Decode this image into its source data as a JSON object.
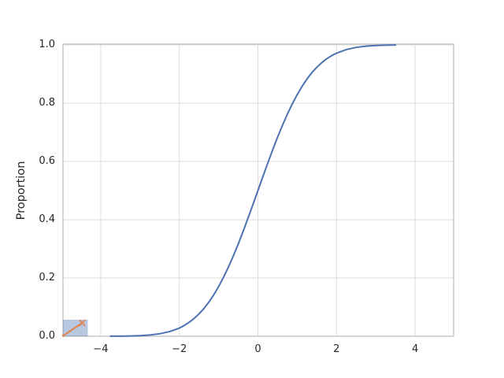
{
  "chart_data": {
    "type": "line",
    "subtype": "ecdf",
    "title": "",
    "xlabel": "",
    "ylabel": "Proportion",
    "xlim": [
      -4.96,
      4.98
    ],
    "ylim": [
      0,
      1
    ],
    "grid": true,
    "legend": "none",
    "xticks": [
      -4,
      -2,
      0,
      2,
      4
    ],
    "xtick_labels": [
      "−4",
      "−2",
      "0",
      "2",
      "4"
    ],
    "yticks": [
      0.0,
      0.2,
      0.4,
      0.6,
      0.8,
      1.0
    ],
    "ytick_labels": [
      "0.0",
      "0.2",
      "0.4",
      "0.6",
      "0.8",
      "1.0"
    ],
    "series": [
      {
        "name": "ecdf-curve",
        "color": "#4c72b0",
        "x": [
          -3.75,
          -3.5,
          -3.25,
          -3.0,
          -2.75,
          -2.5,
          -2.25,
          -2.0,
          -1.875,
          -1.75,
          -1.625,
          -1.5,
          -1.375,
          -1.25,
          -1.125,
          -1.0,
          -0.875,
          -0.75,
          -0.625,
          -0.5,
          -0.375,
          -0.25,
          -0.125,
          0,
          0.125,
          0.25,
          0.375,
          0.5,
          0.625,
          0.75,
          0.875,
          1.0,
          1.125,
          1.25,
          1.375,
          1.5,
          1.625,
          1.75,
          1.875,
          2.0,
          2.25,
          2.5,
          2.75,
          3.0,
          3.25,
          3.5
        ],
        "y": [
          0.0002,
          0.0004,
          0.001,
          0.002,
          0.0044,
          0.0086,
          0.016,
          0.028,
          0.037,
          0.048,
          0.061,
          0.0765,
          0.095,
          0.117,
          0.142,
          0.1705,
          0.2024,
          0.2375,
          0.276,
          0.317,
          0.3605,
          0.406,
          0.4526,
          0.5,
          0.5474,
          0.594,
          0.6395,
          0.683,
          0.724,
          0.7625,
          0.7976,
          0.8295,
          0.858,
          0.883,
          0.905,
          0.9235,
          0.939,
          0.9522,
          0.963,
          0.9716,
          0.984,
          0.9914,
          0.9956,
          0.9979,
          0.999,
          0.9996
        ]
      }
    ],
    "annotation": {
      "name": "corner-inset-marker",
      "rect": {
        "x0": -4.96,
        "x1": -4.33,
        "y0": 0.0,
        "y1": 0.057,
        "fill": "#4c72b0",
        "fill_alpha": 0.4
      },
      "line": {
        "x0": -4.95,
        "y0": 0.002,
        "x1": -4.47,
        "y1": 0.046,
        "color": "#dd8452",
        "start_marker": "dot",
        "end_marker": "x"
      }
    },
    "colors": {
      "background": "#ffffff",
      "grid": "#dcdcdc",
      "frame": "#c3c3c3",
      "text": "#262626",
      "curve": "#4c72b0",
      "annotation_orange": "#dd8452"
    }
  }
}
